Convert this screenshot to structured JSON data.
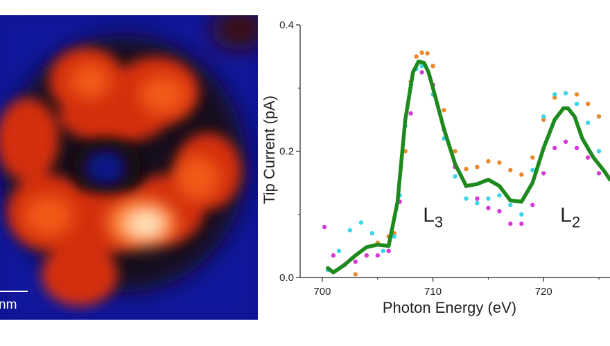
{
  "image": {
    "scale_bar_label": "nm"
  },
  "chart_data": {
    "type": "scatter",
    "xlabel": "Photon Energy (eV)",
    "ylabel": "Tip Current (pA)",
    "xlim": [
      698,
      726
    ],
    "ylim": [
      0,
      0.4
    ],
    "xticks": [
      "700",
      "710",
      "720"
    ],
    "yticks": [
      "0.0",
      "0.2",
      "0.4"
    ],
    "annotations": [
      {
        "main": "L",
        "sub": "3",
        "x": 709.1,
        "y": 0.088
      },
      {
        "main": "L",
        "sub": "2",
        "x": 721.5,
        "y": 0.088
      }
    ],
    "series": [
      {
        "color": "#e8892a",
        "style": "dots",
        "x": [
          703,
          704,
          705,
          706,
          706.5,
          707,
          707.5,
          708,
          708.5,
          709,
          709.5,
          710,
          711,
          712,
          713,
          714,
          715,
          716,
          717,
          718,
          719,
          720,
          721,
          722,
          723,
          724,
          725
        ],
        "y": [
          0.005,
          0.035,
          0.055,
          0.065,
          0.07,
          0.12,
          0.2,
          0.31,
          0.35,
          0.356,
          0.355,
          0.335,
          0.265,
          0.2,
          0.172,
          0.175,
          0.184,
          0.182,
          0.17,
          0.163,
          0.19,
          0.25,
          0.285,
          0.292,
          0.29,
          0.275,
          0.255
        ]
      },
      {
        "color": "#3dd6e6",
        "style": "dots",
        "x": [
          700.5,
          701.5,
          702.5,
          703.5,
          704.5,
          705.5,
          706.5,
          707,
          707.5,
          708,
          708.5,
          709,
          710,
          711,
          712,
          713,
          714,
          715,
          716,
          717,
          718,
          719,
          720,
          721,
          722,
          723,
          724,
          725
        ],
        "y": [
          0.012,
          0.042,
          0.075,
          0.087,
          0.07,
          0.042,
          0.065,
          0.13,
          0.24,
          0.305,
          0.33,
          0.335,
          0.29,
          0.22,
          0.16,
          0.125,
          0.118,
          0.125,
          0.13,
          0.115,
          0.1,
          0.17,
          0.255,
          0.29,
          0.292,
          0.275,
          0.245,
          0.2
        ]
      },
      {
        "color": "#d63ad6",
        "style": "dots",
        "x": [
          700.2,
          701,
          702,
          703,
          704,
          705,
          706,
          707,
          708,
          709,
          710,
          711,
          712,
          713,
          714,
          715,
          716,
          717,
          718,
          719,
          720,
          721,
          722,
          723,
          724,
          725
        ],
        "y": [
          0.08,
          0.035,
          0.02,
          0.025,
          0.035,
          0.035,
          0.042,
          0.12,
          0.26,
          0.325,
          0.305,
          0.235,
          0.175,
          0.145,
          0.125,
          0.11,
          0.105,
          0.085,
          0.085,
          0.115,
          0.165,
          0.205,
          0.215,
          0.205,
          0.19,
          0.165
        ]
      },
      {
        "color": "#1e8a1e",
        "style": "line",
        "x": [
          700.5,
          701,
          702,
          703,
          704,
          705,
          706,
          706.8,
          707.5,
          708.2,
          708.7,
          709.2,
          709.6,
          710,
          711,
          712,
          713,
          714,
          715,
          716,
          717,
          718,
          719,
          720,
          721,
          721.8,
          722.2,
          722.8,
          723.5,
          724.5,
          725.5,
          726
        ],
        "y": [
          0.015,
          0.008,
          0.02,
          0.035,
          0.048,
          0.052,
          0.05,
          0.12,
          0.25,
          0.325,
          0.342,
          0.34,
          0.325,
          0.3,
          0.235,
          0.18,
          0.145,
          0.148,
          0.155,
          0.145,
          0.122,
          0.12,
          0.15,
          0.205,
          0.25,
          0.268,
          0.268,
          0.255,
          0.22,
          0.19,
          0.168,
          0.155
        ]
      }
    ]
  }
}
